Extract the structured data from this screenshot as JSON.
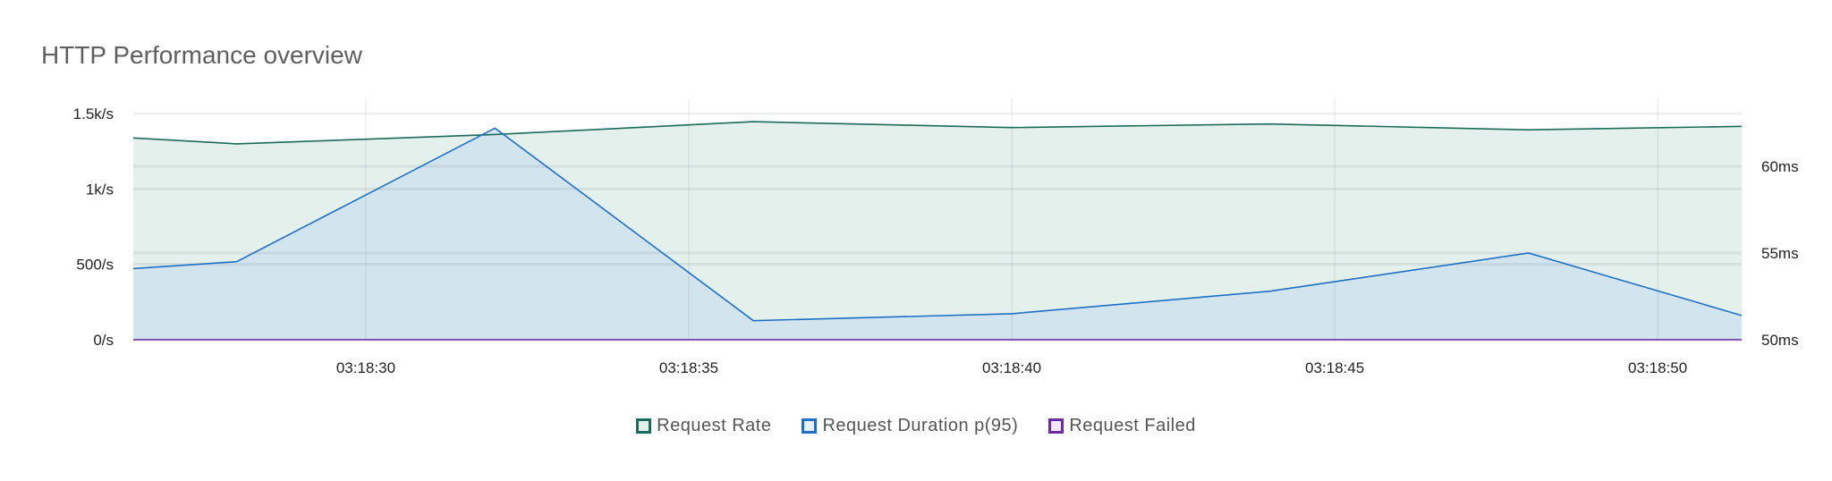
{
  "chart_data": {
    "type": "area",
    "title": "HTTP Performance overview",
    "x_ticks": [
      "03:18:30",
      "03:18:35",
      "03:18:40",
      "03:18:45",
      "03:18:50"
    ],
    "x_range_seconds_label": [
      "03:18:26.4",
      "03:18:51.3"
    ],
    "y_left": {
      "ticks": [
        "0/s",
        "500/s",
        "1k/s",
        "1.5k/s"
      ],
      "tick_values": [
        0,
        500,
        1000,
        1500
      ],
      "range": [
        0,
        1500
      ]
    },
    "y_right": {
      "ticks": [
        "50ms",
        "55ms",
        "60ms"
      ],
      "tick_values": [
        50,
        55,
        60
      ],
      "range": [
        50,
        63.1
      ]
    },
    "grid": true,
    "legend_position": "bottom",
    "x": [
      "03:18:26.4",
      "03:18:28",
      "03:18:32",
      "03:18:36",
      "03:18:40",
      "03:18:44",
      "03:18:48",
      "03:18:51.3"
    ],
    "series": [
      {
        "name": "Request Rate",
        "axis": "left",
        "unit": "req/s",
        "color": "#1b6b58",
        "fill": "#e3f0ec",
        "values": [
          1338,
          1299,
          1361,
          1446,
          1407,
          1431,
          1392,
          1415
        ]
      },
      {
        "name": "Request Duration p(95)",
        "axis": "right",
        "unit": "ms",
        "color": "#1f6fc5",
        "fill": "#cfe2ee",
        "values": [
          54.1,
          54.5,
          62.2,
          51.1,
          51.5,
          52.8,
          55.0,
          51.4
        ]
      },
      {
        "name": "Request Failed",
        "axis": "left",
        "unit": "req/s",
        "color": "#6a2ca0",
        "fill": "#f1e6fa",
        "values": [
          0,
          0,
          0,
          0,
          0,
          0,
          0,
          0
        ]
      }
    ]
  }
}
